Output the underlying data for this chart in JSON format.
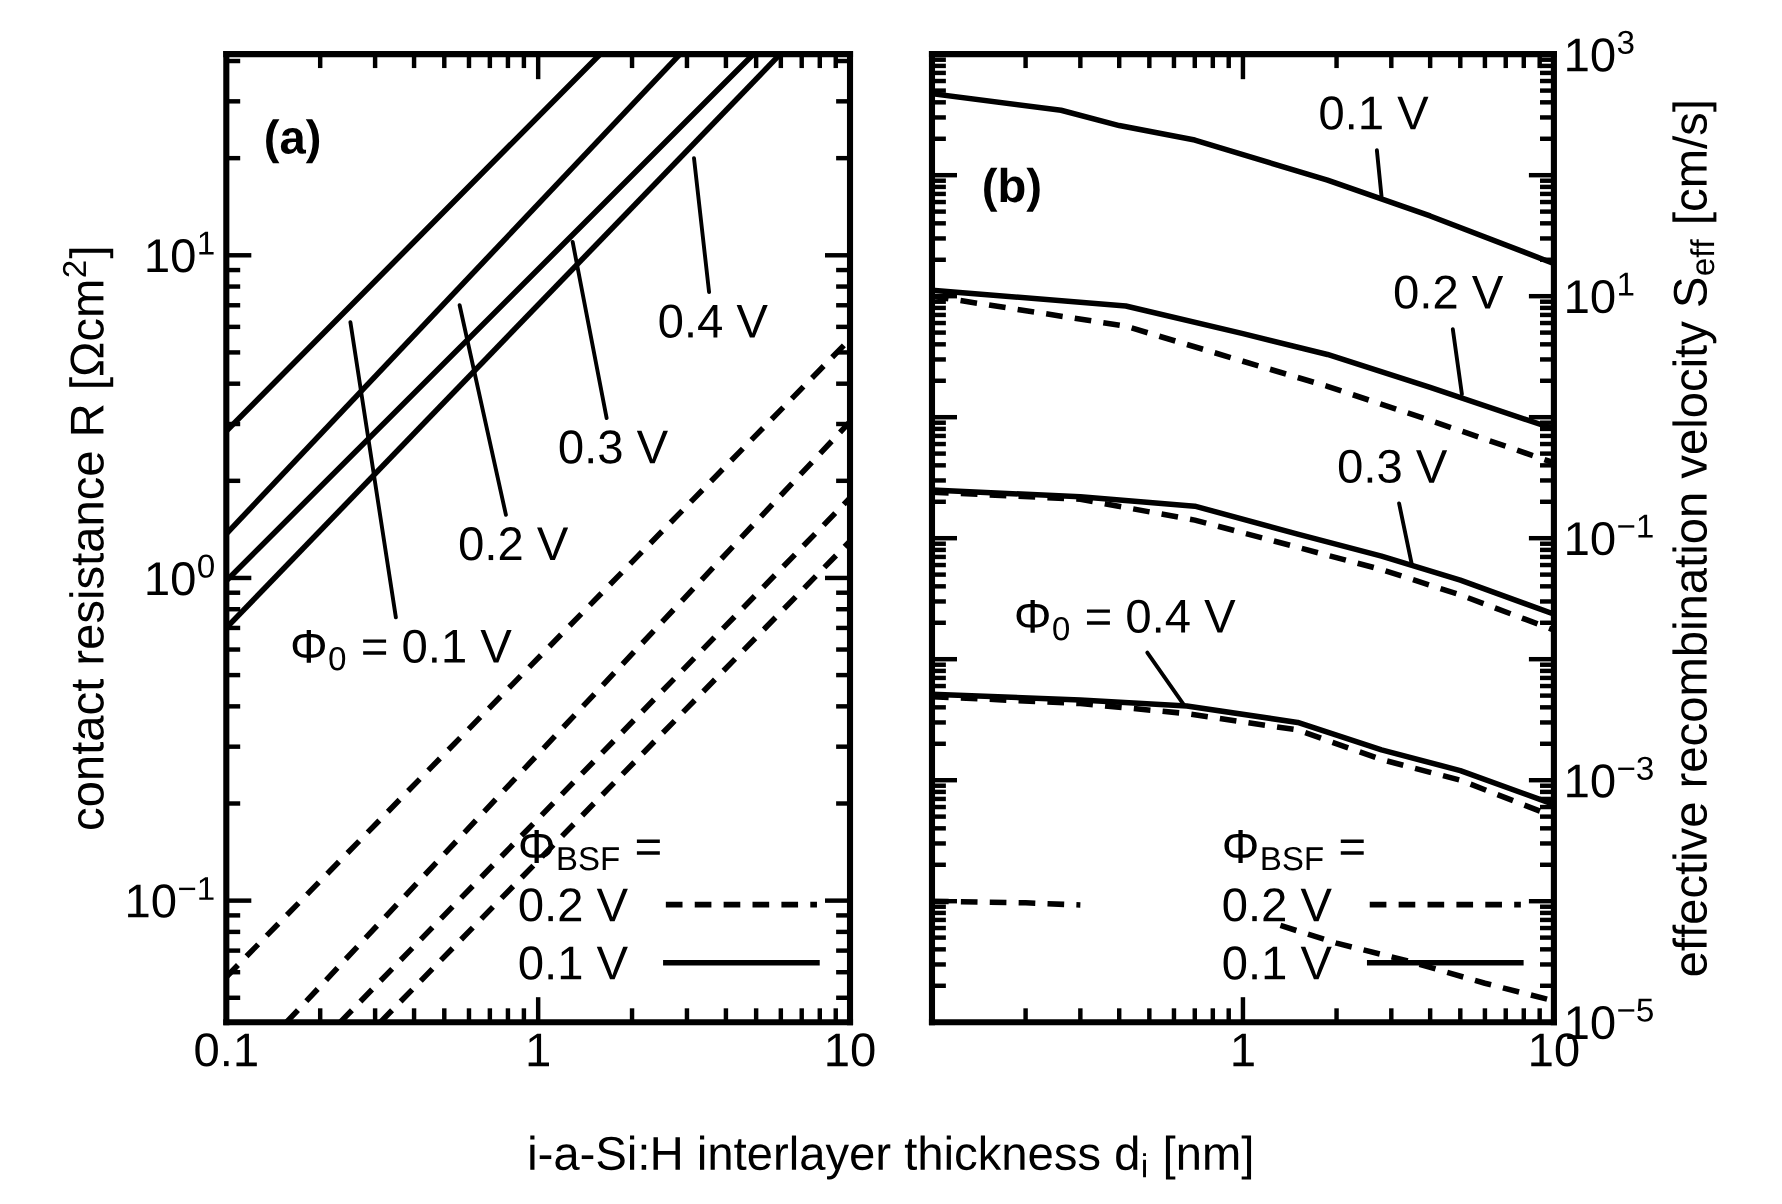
{
  "chart_data": [
    {
      "type": "line",
      "xlabel": "i-a-Si:H interlayer thickness d$_{i}$ [nm]",
      "ylabel": "contact resistance R [Ωcm$^{2}$]",
      "log": "xy",
      "xlim": [
        0.1,
        10
      ],
      "xticks": [
        0.1,
        1,
        10
      ],
      "ylim": [
        0.042,
        42
      ],
      "yticks": [
        {
          "value": 0.1,
          "label": "10$^{−1}$"
        },
        {
          "value": 1,
          "label": "10$^{0}$"
        },
        {
          "value": 10,
          "label": "10$^{1}$"
        }
      ],
      "legend": "bottom right",
      "legend_title": "Φ$_{BSF}$ =",
      "grid": false,
      "series": [
        {
          "name": "0.1 V",
          "color": "#000000",
          "line_style": "solid",
          "x": [
            0.1,
            1.58
          ],
          "values": [
            2.85,
            42
          ]
        },
        {
          "color": "#000000",
          "line_style": "solid",
          "x": [
            0.1,
            2.85
          ],
          "values": [
            1.37,
            42
          ]
        },
        {
          "color": "#000000",
          "line_style": "solid",
          "x": [
            0.1,
            4.9
          ],
          "values": [
            0.98,
            42
          ]
        },
        {
          "color": "#000000",
          "line_style": "solid",
          "x": [
            0.1,
            5.97
          ],
          "values": [
            0.7,
            42
          ]
        },
        {
          "name": "0.2 V",
          "color": "#000000",
          "line_style": "dashed",
          "x": [
            0.1,
            10
          ],
          "values": [
            0.058,
            5.5
          ]
        },
        {
          "color": "#000000",
          "line_style": "dashed",
          "x": [
            0.156,
            10
          ],
          "values": [
            0.042,
            3.05
          ]
        },
        {
          "color": "#000000",
          "line_style": "dashed",
          "x": [
            0.232,
            10
          ],
          "values": [
            0.042,
            1.77
          ]
        },
        {
          "color": "#000000",
          "line_style": "dashed",
          "x": [
            0.312,
            10
          ],
          "values": [
            0.042,
            1.3
          ]
        }
      ],
      "annotations": [
        "(a)",
        {
          "text": "Φ$_{0}$ = 0.1 V",
          "x": 0.25,
          "y": 6.2
        },
        {
          "text": "0.2 V",
          "x": 0.56,
          "y": 7.0
        },
        {
          "text": "0.3 V",
          "x": 1.29,
          "y": 11
        },
        {
          "text": "0.4 V",
          "x": 3.16,
          "y": 20
        }
      ]
    },
    {
      "type": "line",
      "ylabel": "effective recombination velocity S$_{eff}$ [cm/s]",
      "log": "xy",
      "xlim": [
        0.1,
        10
      ],
      "xticks": [
        {
          "value": 0.1,
          "label": null
        },
        1,
        10
      ],
      "ylim": [
        1e-05,
        1000
      ],
      "yticks": [
        {
          "value": 1000,
          "label": "10$^{3}$"
        },
        {
          "value": 100,
          "label": null
        },
        {
          "value": 10,
          "label": "10$^{1}$"
        },
        {
          "value": 1,
          "label": null
        },
        {
          "value": 0.1,
          "label": "10$^{−1}$"
        },
        {
          "value": 0.01,
          "label": null
        },
        {
          "value": 0.001,
          "label": "10$^{−3}$"
        },
        {
          "value": 0.0001,
          "label": null
        },
        {
          "value": 1e-05,
          "label": "10$^{−5}$"
        }
      ],
      "legend": "bottom right",
      "legend_title": "Φ$_{BSF}$ =",
      "grid": false,
      "series": [
        {
          "name": "0.1 V",
          "color": "#000000",
          "line_style": "solid",
          "x": [
            0.1,
            0.26,
            0.4,
            0.7,
            1.87,
            4,
            10
          ],
          "values": [
            472,
            344,
            257,
            195,
            91,
            46,
            18.6
          ]
        },
        {
          "color": "#000000",
          "line_style": "solid",
          "x": [
            0.1,
            0.42,
            1,
            1.87,
            4,
            10
          ],
          "values": [
            11.2,
            8.3,
            4.9,
            3.3,
            1.76,
            0.8
          ]
        },
        {
          "color": "#000000",
          "line_style": "solid",
          "x": [
            0.1,
            0.3,
            0.7,
            1.5,
            2.79,
            5,
            10
          ],
          "values": [
            0.25,
            0.22,
            0.184,
            0.108,
            0.071,
            0.045,
            0.0236
          ]
        },
        {
          "color": "#000000",
          "line_style": "solid",
          "x": [
            0.1,
            0.3,
            0.66,
            1.5,
            2.79,
            5,
            10
          ],
          "values": [
            0.00514,
            0.0046,
            0.0041,
            0.003,
            0.00178,
            0.0012,
            0.00063
          ]
        },
        {
          "name": "0.2 V",
          "color": "#000000",
          "line_style": "dashed",
          "x": [
            0.1,
            0.42,
            1,
            1.87,
            4,
            10
          ],
          "values": [
            10,
            5.65,
            2.9,
            1.8,
            0.94,
            0.42
          ]
        },
        {
          "color": "#000000",
          "line_style": "dashed",
          "x": [
            0.1,
            0.3,
            0.7,
            1.5,
            2.79,
            5,
            10
          ],
          "values": [
            0.24,
            0.21,
            0.141,
            0.084,
            0.055,
            0.034,
            0.0174
          ]
        },
        {
          "color": "#000000",
          "line_style": "dashed",
          "x": [
            0.1,
            0.3,
            0.66,
            1.5,
            2.79,
            5,
            10
          ],
          "values": [
            0.0049,
            0.0043,
            0.00355,
            0.0026,
            0.00148,
            0.001,
            0.0005
          ]
        },
        {
          "color": "#000000",
          "line_style": "dashed",
          "x": [
            0.1,
            0.2,
            0.3,
            0.5,
            0.8,
            1.32,
            2,
            3.4,
            6,
            10
          ],
          "values": [
            0.0001,
            9.7e-05,
            9.3e-05,
            null,
            null,
            6.3e-05,
            4.5e-05,
            3.2e-05,
            2.1e-05,
            1.5e-05
          ]
        }
      ],
      "annotations": [
        "(b)",
        {
          "text": "0.1 V",
          "x": 2.79,
          "y": 67
        },
        {
          "text": "0.2 V",
          "x": 5.06,
          "y": 1.55
        },
        {
          "text": "0.3 V",
          "x": 3.49,
          "y": 0.061
        },
        {
          "text": "Φ$_{0}$ = 0.4 V",
          "x": 0.65,
          "y": 0.0041
        }
      ]
    }
  ]
}
